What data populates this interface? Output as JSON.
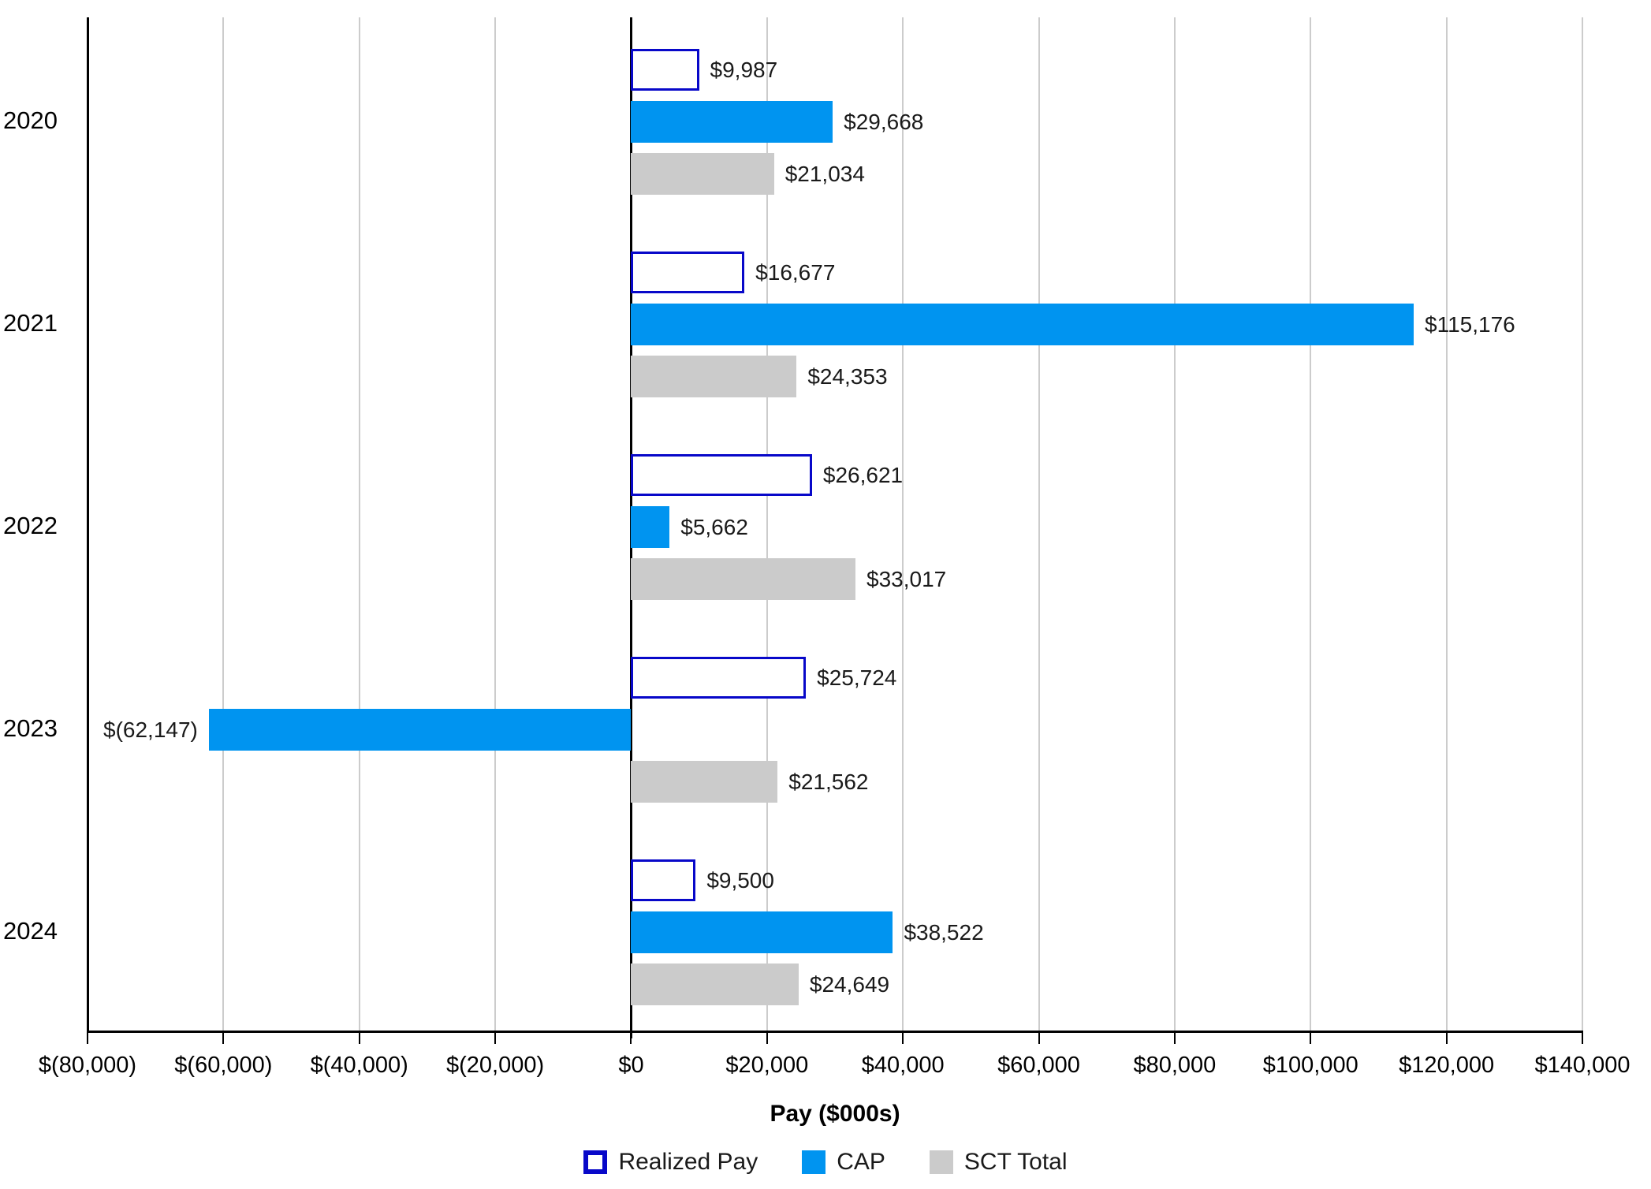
{
  "chart_data": {
    "type": "bar",
    "orientation": "horizontal",
    "title": "",
    "xlabel": "Pay ($000s)",
    "ylabel": "",
    "categories": [
      "2020",
      "2021",
      "2022",
      "2023",
      "2024"
    ],
    "series": [
      {
        "name": "Realized Pay",
        "style": "outlined",
        "values": [
          9987,
          16677,
          26621,
          25724,
          9500
        ],
        "labels": [
          "$9,987",
          "$16,677",
          "$26,621",
          "$25,724",
          "$9,500"
        ]
      },
      {
        "name": "CAP",
        "style": "fill-blue",
        "values": [
          29668,
          115176,
          5662,
          -62147,
          38522
        ],
        "labels": [
          "$29,668",
          "$115,176",
          "$5,662",
          "$(62,147)",
          "$38,522"
        ]
      },
      {
        "name": "SCT Total",
        "style": "fill-gray",
        "values": [
          21034,
          24353,
          33017,
          21562,
          24649
        ],
        "labels": [
          "$21,034",
          "$24,353",
          "$33,017",
          "$21,562",
          "$24,649"
        ]
      }
    ],
    "xlim": [
      -80000,
      140000
    ],
    "xticks": [
      -80000,
      -60000,
      -40000,
      -20000,
      0,
      20000,
      40000,
      60000,
      80000,
      100000,
      120000,
      140000
    ],
    "xtick_labels": [
      "$(80,000)",
      "$(60,000)",
      "$(40,000)",
      "$(20,000)",
      "$0",
      "$20,000",
      "$40,000",
      "$60,000",
      "$80,000",
      "$100,000",
      "$120,000",
      "$140,000"
    ],
    "grid": "vertical",
    "legend_position": "bottom"
  },
  "colors": {
    "cap_blue": "#0094f0",
    "sct_gray": "#cbcbcb",
    "realized_border_blue": "#0808c9",
    "gridline_gray": "#cccccc",
    "axis_black": "#000000",
    "label_text": "#1a1a1a"
  }
}
